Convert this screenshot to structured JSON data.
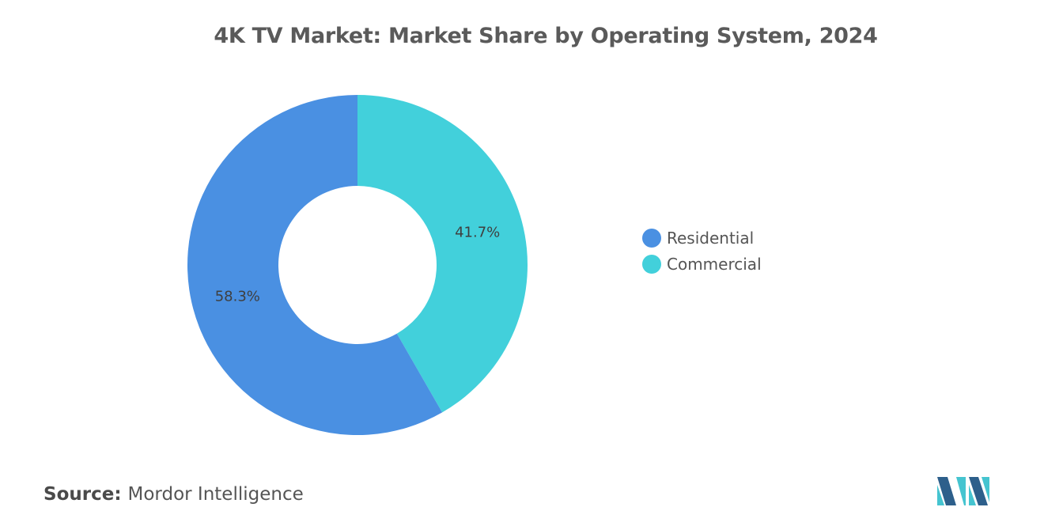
{
  "chart_data": {
    "type": "pie",
    "title": "4K TV Market: Market Share by Operating System, 2024",
    "donut": true,
    "series": [
      {
        "name": "Residential",
        "value": 58.3,
        "label": "58.3%",
        "color": "#4a90e2"
      },
      {
        "name": "Commercial",
        "value": 41.7,
        "label": "41.7%",
        "color": "#42d0db"
      }
    ],
    "legend_placement": "right"
  },
  "source": {
    "key": "Source:",
    "value": "Mordor Intelligence"
  },
  "colors": {
    "title": "#5a5a5a",
    "text": "#555555",
    "logo_dark": "#2d5f8b",
    "logo_light": "#45c4d0"
  }
}
